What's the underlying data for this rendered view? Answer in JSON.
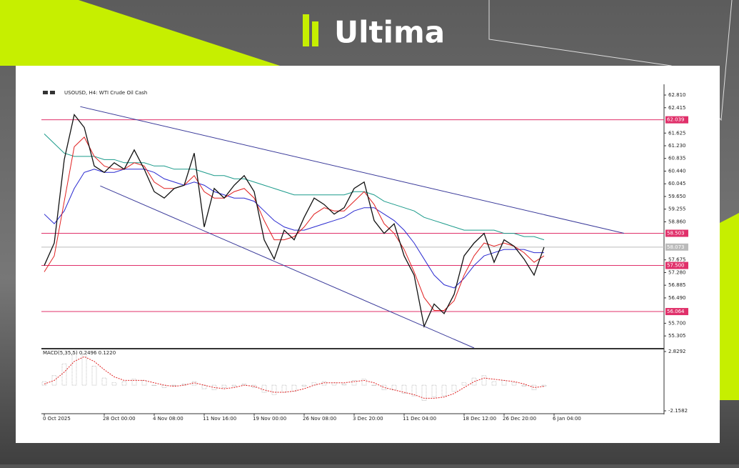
{
  "brand": "Ultima",
  "chart_data": {
    "type": "line",
    "title": "USOUSD, H4:  WTI Crude Oil Cash",
    "categories": [
      "0 Oct 2025",
      null,
      null,
      null,
      null,
      null,
      "28 Oct 00:00",
      null,
      null,
      null,
      null,
      "4 Nov 08:00",
      null,
      null,
      null,
      null,
      "11 Nov 16:00",
      null,
      null,
      null,
      null,
      "19 Nov 00:00",
      null,
      null,
      null,
      null,
      "26 Nov 08:00",
      null,
      null,
      null,
      null,
      "3 Dec 20:00",
      null,
      null,
      null,
      null,
      "11 Dec 04:00",
      null,
      null,
      null,
      null,
      null,
      "18 Dec 12:00",
      null,
      null,
      null,
      "26 Dec 20:00",
      null,
      null,
      null,
      null,
      "6 Jan 04:00"
    ],
    "series": [
      {
        "color": "#111111",
        "values": [
          57.5,
          58.2,
          60.8,
          62.2,
          61.8,
          60.6,
          60.4,
          60.7,
          60.5,
          61.1,
          60.5,
          59.8,
          59.6,
          59.9,
          60.0,
          61.0,
          58.7,
          59.9,
          59.6,
          60.0,
          60.3,
          59.8,
          58.3,
          57.7,
          58.6,
          58.3,
          59.0,
          59.6,
          59.4,
          59.1,
          59.3,
          59.9,
          60.1,
          58.9,
          58.5,
          58.8,
          57.8,
          57.2,
          55.6,
          56.3,
          56.0,
          56.6,
          57.8,
          58.2,
          58.5,
          57.6,
          58.3,
          58.1,
          57.7,
          57.2,
          58.073,
          null
        ]
      },
      {
        "color": "#e02020",
        "values": [
          57.3,
          57.8,
          59.5,
          61.2,
          61.5,
          60.9,
          60.6,
          60.5,
          60.5,
          60.7,
          60.6,
          60.1,
          59.9,
          59.9,
          60.0,
          60.3,
          59.8,
          59.6,
          59.6,
          59.8,
          59.9,
          59.6,
          58.9,
          58.3,
          58.3,
          58.4,
          58.7,
          59.1,
          59.3,
          59.2,
          59.2,
          59.5,
          59.8,
          59.4,
          58.8,
          58.5,
          58.0,
          57.3,
          56.5,
          56.1,
          56.1,
          56.4,
          57.2,
          57.8,
          58.2,
          58.1,
          58.2,
          58.1,
          57.9,
          57.6,
          57.8,
          null
        ]
      },
      {
        "color": "#2a2ad0",
        "values": [
          59.1,
          58.8,
          59.2,
          59.9,
          60.4,
          60.5,
          60.4,
          60.4,
          60.5,
          60.5,
          60.5,
          60.4,
          60.2,
          60.1,
          60.0,
          60.1,
          60.0,
          59.8,
          59.7,
          59.6,
          59.6,
          59.5,
          59.2,
          58.9,
          58.7,
          58.6,
          58.6,
          58.7,
          58.8,
          58.9,
          59.0,
          59.2,
          59.3,
          59.3,
          59.1,
          58.9,
          58.6,
          58.2,
          57.7,
          57.2,
          56.9,
          56.8,
          57.1,
          57.5,
          57.8,
          57.9,
          58.0,
          58.0,
          58.0,
          57.9,
          57.9,
          null
        ]
      },
      {
        "color": "#1a9a8a",
        "values": [
          61.6,
          61.3,
          61.0,
          60.9,
          60.9,
          60.9,
          60.8,
          60.8,
          60.7,
          60.7,
          60.7,
          60.6,
          60.6,
          60.5,
          60.5,
          60.5,
          60.4,
          60.3,
          60.3,
          60.2,
          60.2,
          60.1,
          60.0,
          59.9,
          59.8,
          59.7,
          59.7,
          59.7,
          59.7,
          59.7,
          59.7,
          59.8,
          59.8,
          59.7,
          59.5,
          59.4,
          59.3,
          59.2,
          59.0,
          58.9,
          58.8,
          58.7,
          58.6,
          58.6,
          58.6,
          58.6,
          58.5,
          58.5,
          58.4,
          58.4,
          58.3,
          null
        ]
      }
    ],
    "ylim": [
      54.93,
      63.1
    ],
    "yticks": [
      {
        "value": 62.81,
        "label": "62.810"
      },
      62.415,
      61.625,
      {
        "value": 61.23,
        "label": "61.230"
      },
      60.835,
      {
        "value": 60.44,
        "label": "60.440"
      },
      60.045,
      {
        "value": 59.65,
        "label": "59.650"
      },
      59.255,
      {
        "value": 58.86,
        "label": "58.860"
      },
      57.675,
      {
        "value": 57.28,
        "label": "57.280"
      },
      56.885,
      {
        "value": 56.49,
        "label": "56.490"
      },
      {
        "value": 55.7,
        "label": "55.700"
      },
      55.305
    ],
    "levels": [
      {
        "value": 62.039,
        "color": "#e0306a"
      },
      {
        "value": 58.503,
        "color": "#e0306a"
      },
      {
        "value": 58.073,
        "color": "#bbbbbb"
      },
      {
        "value": 57.5,
        "label": "57.500",
        "color": "#e0306a"
      },
      {
        "value": 56.064,
        "color": "#e0306a"
      }
    ],
    "trendlines": [
      {
        "x": [
          3.6,
          58
        ],
        "y": [
          62.45,
          58.503
        ],
        "color": "#3a3a9a"
      },
      {
        "x": [
          5.6,
          43
        ],
        "y": [
          59.98,
          54.93
        ],
        "color": "#3a3a9a"
      }
    ],
    "macd": {
      "label": "MACD(5,35,5) 0.2496 0.1220",
      "histogram": [
        0.3,
        0.8,
        1.8,
        2.7,
        2.6,
        1.6,
        0.6,
        0.2,
        0.3,
        0.5,
        0.4,
        0.0,
        -0.2,
        0.0,
        0.1,
        0.3,
        -0.3,
        -0.4,
        -0.2,
        -0.1,
        0.1,
        -0.2,
        -0.6,
        -0.8,
        -0.6,
        -0.5,
        -0.1,
        0.2,
        0.3,
        0.2,
        0.1,
        0.4,
        0.5,
        0.0,
        -0.4,
        -0.4,
        -0.7,
        -0.9,
        -1.3,
        -1.0,
        -0.9,
        -0.5,
        0.2,
        0.6,
        0.8,
        0.3,
        0.4,
        0.2,
        -0.1,
        -0.4,
        -0.1,
        null
      ],
      "signal": [
        0.1,
        0.4,
        1.1,
        2.0,
        2.4,
        2.0,
        1.3,
        0.7,
        0.4,
        0.4,
        0.4,
        0.2,
        0.0,
        -0.1,
        0.0,
        0.2,
        0.0,
        -0.2,
        -0.3,
        -0.2,
        0.0,
        -0.1,
        -0.4,
        -0.6,
        -0.6,
        -0.5,
        -0.3,
        0.0,
        0.2,
        0.2,
        0.2,
        0.3,
        0.4,
        0.2,
        -0.2,
        -0.4,
        -0.6,
        -0.8,
        -1.1,
        -1.1,
        -1.0,
        -0.7,
        -0.2,
        0.3,
        0.6,
        0.5,
        0.4,
        0.3,
        0.1,
        -0.2,
        -0.1,
        null
      ],
      "histogram_color": "#999999",
      "signal_color": "#e02020",
      "ylim": [
        -2.34,
        3.01
      ],
      "yticks": [
        2.8292,
        -2.1582
      ]
    }
  }
}
